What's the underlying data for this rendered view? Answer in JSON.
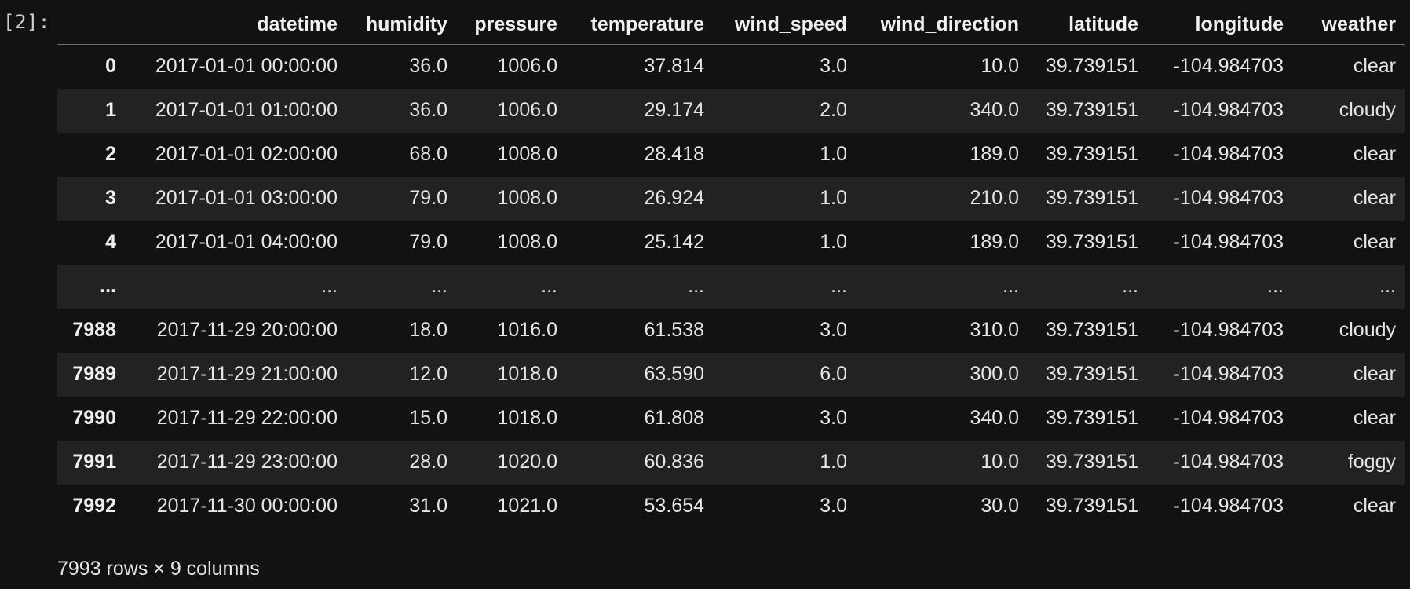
{
  "cell": {
    "prompt": "[2]:"
  },
  "dataframe": {
    "index_header": "",
    "columns": [
      "datetime",
      "humidity",
      "pressure",
      "temperature",
      "wind_speed",
      "wind_direction",
      "latitude",
      "longitude",
      "weather"
    ],
    "rows": [
      {
        "index": "0",
        "cells": [
          "2017-01-01 00:00:00",
          "36.0",
          "1006.0",
          "37.814",
          "3.0",
          "10.0",
          "39.739151",
          "-104.984703",
          "clear"
        ]
      },
      {
        "index": "1",
        "cells": [
          "2017-01-01 01:00:00",
          "36.0",
          "1006.0",
          "29.174",
          "2.0",
          "340.0",
          "39.739151",
          "-104.984703",
          "cloudy"
        ]
      },
      {
        "index": "2",
        "cells": [
          "2017-01-01 02:00:00",
          "68.0",
          "1008.0",
          "28.418",
          "1.0",
          "189.0",
          "39.739151",
          "-104.984703",
          "clear"
        ]
      },
      {
        "index": "3",
        "cells": [
          "2017-01-01 03:00:00",
          "79.0",
          "1008.0",
          "26.924",
          "1.0",
          "210.0",
          "39.739151",
          "-104.984703",
          "clear"
        ]
      },
      {
        "index": "4",
        "cells": [
          "2017-01-01 04:00:00",
          "79.0",
          "1008.0",
          "25.142",
          "1.0",
          "189.0",
          "39.739151",
          "-104.984703",
          "clear"
        ]
      },
      {
        "index": "...",
        "cells": [
          "...",
          "...",
          "...",
          "...",
          "...",
          "...",
          "...",
          "...",
          "..."
        ]
      },
      {
        "index": "7988",
        "cells": [
          "2017-11-29 20:00:00",
          "18.0",
          "1016.0",
          "61.538",
          "3.0",
          "310.0",
          "39.739151",
          "-104.984703",
          "cloudy"
        ]
      },
      {
        "index": "7989",
        "cells": [
          "2017-11-29 21:00:00",
          "12.0",
          "1018.0",
          "63.590",
          "6.0",
          "300.0",
          "39.739151",
          "-104.984703",
          "clear"
        ]
      },
      {
        "index": "7990",
        "cells": [
          "2017-11-29 22:00:00",
          "15.0",
          "1018.0",
          "61.808",
          "3.0",
          "340.0",
          "39.739151",
          "-104.984703",
          "clear"
        ]
      },
      {
        "index": "7991",
        "cells": [
          "2017-11-29 23:00:00",
          "28.0",
          "1020.0",
          "60.836",
          "1.0",
          "10.0",
          "39.739151",
          "-104.984703",
          "foggy"
        ]
      },
      {
        "index": "7992",
        "cells": [
          "2017-11-30 00:00:00",
          "31.0",
          "1021.0",
          "53.654",
          "3.0",
          "30.0",
          "39.739151",
          "-104.984703",
          "clear"
        ]
      }
    ],
    "shape_text": "7993 rows × 9 columns"
  }
}
